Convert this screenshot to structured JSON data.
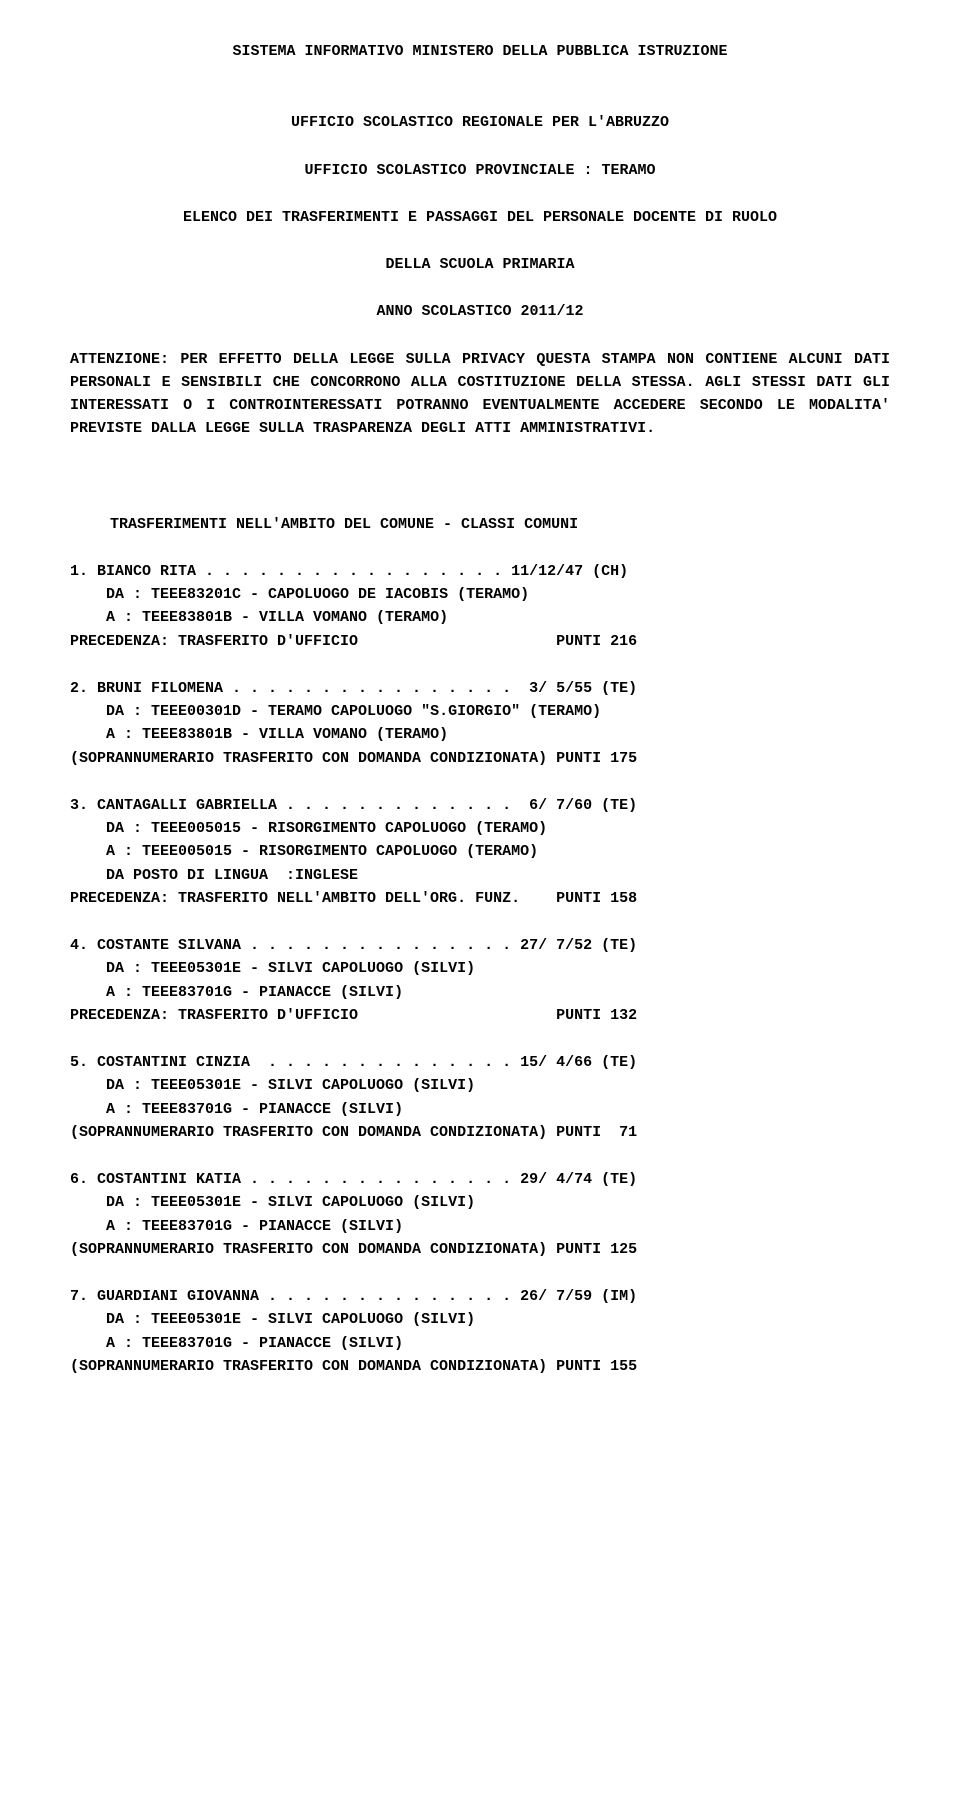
{
  "header": {
    "line1": "SISTEMA INFORMATIVO MINISTERO DELLA PUBBLICA ISTRUZIONE",
    "line2": "UFFICIO SCOLASTICO REGIONALE PER L'ABRUZZO",
    "line3": "UFFICIO SCOLASTICO PROVINCIALE : TERAMO",
    "line4": "ELENCO DEI TRASFERIMENTI E PASSAGGI DEL PERSONALE DOCENTE DI RUOLO",
    "line5": "DELLA SCUOLA PRIMARIA",
    "line6": "ANNO SCOLASTICO 2011/12"
  },
  "notice": "ATTENZIONE: PER EFFETTO DELLA LEGGE SULLA PRIVACY QUESTA STAMPA NON CONTIENE ALCUNI DATI PERSONALI E SENSIBILI CHE CONCORRONO ALLA COSTITUZIONE DELLA STESSA. AGLI STESSI DATI GLI INTERESSATI O I CONTROINTERESSATI POTRANNO EVENTUALMENTE ACCEDERE SECONDO LE MODALITA' PREVISTE DALLA LEGGE SULLA TRASPARENZA DEGLI ATTI AMMINISTRATIVI.",
  "section_title": "TRASFERIMENTI NELL'AMBITO DEL COMUNE - CLASSI COMUNI",
  "entries": [
    {
      "name": "1. BIANCO RITA . . . . . . . . . . . . . . . . . 11/12/47 (CH)",
      "da": "    DA : TEEE83201C - CAPOLUOGO DE IACOBIS (TERAMO)",
      "a": "    A : TEEE83801B - VILLA VOMANO (TERAMO)",
      "extra": null,
      "foot": "PRECEDENZA: TRASFERITO D'UFFICIO                      PUNTI 216"
    },
    {
      "name": "2. BRUNI FILOMENA . . . . . . . . . . . . . . . .  3/ 5/55 (TE)",
      "da": "    DA : TEEE00301D - TERAMO CAPOLUOGO \"S.GIORGIO\" (TERAMO)",
      "a": "    A : TEEE83801B - VILLA VOMANO (TERAMO)",
      "extra": null,
      "foot": "(SOPRANNUMERARIO TRASFERITO CON DOMANDA CONDIZIONATA) PUNTI 175"
    },
    {
      "name": "3. CANTAGALLI GABRIELLA . . . . . . . . . . . . .  6/ 7/60 (TE)",
      "da": "    DA : TEEE005015 - RISORGIMENTO CAPOLUOGO (TERAMO)",
      "a": "    A : TEEE005015 - RISORGIMENTO CAPOLUOGO (TERAMO)",
      "extra": "    DA POSTO DI LINGUA  :INGLESE",
      "foot": "PRECEDENZA: TRASFERITO NELL'AMBITO DELL'ORG. FUNZ.    PUNTI 158"
    },
    {
      "name": "4. COSTANTE SILVANA . . . . . . . . . . . . . . . 27/ 7/52 (TE)",
      "da": "    DA : TEEE05301E - SILVI CAPOLUOGO (SILVI)",
      "a": "    A : TEEE83701G - PIANACCE (SILVI)",
      "extra": null,
      "foot": "PRECEDENZA: TRASFERITO D'UFFICIO                      PUNTI 132"
    },
    {
      "name": "5. COSTANTINI CINZIA  . . . . . . . . . . . . . . 15/ 4/66 (TE)",
      "da": "    DA : TEEE05301E - SILVI CAPOLUOGO (SILVI)",
      "a": "    A : TEEE83701G - PIANACCE (SILVI)",
      "extra": null,
      "foot": "(SOPRANNUMERARIO TRASFERITO CON DOMANDA CONDIZIONATA) PUNTI  71"
    },
    {
      "name": "6. COSTANTINI KATIA . . . . . . . . . . . . . . . 29/ 4/74 (TE)",
      "da": "    DA : TEEE05301E - SILVI CAPOLUOGO (SILVI)",
      "a": "    A : TEEE83701G - PIANACCE (SILVI)",
      "extra": null,
      "foot": "(SOPRANNUMERARIO TRASFERITO CON DOMANDA CONDIZIONATA) PUNTI 125"
    },
    {
      "name": "7. GUARDIANI GIOVANNA . . . . . . . . . . . . . . 26/ 7/59 (IM)",
      "da": "    DA : TEEE05301E - SILVI CAPOLUOGO (SILVI)",
      "a": "    A : TEEE83701G - PIANACCE (SILVI)",
      "extra": null,
      "foot": "(SOPRANNUMERARIO TRASFERITO CON DOMANDA CONDIZIONATA) PUNTI 155"
    }
  ]
}
